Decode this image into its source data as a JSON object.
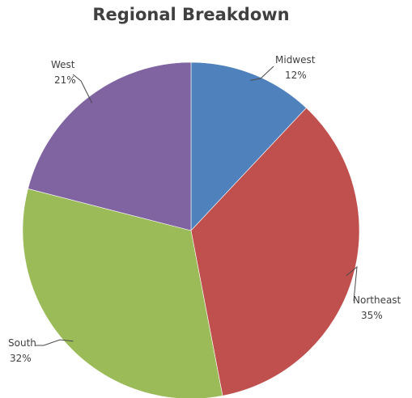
{
  "chart_data": {
    "type": "pie",
    "title": "Regional Breakdown",
    "slices": [
      {
        "label": "Midwest",
        "value": 12,
        "value_label": "12%",
        "color": "#4f81bd"
      },
      {
        "label": "Northeast",
        "value": 35,
        "value_label": "35%",
        "color": "#c0504d"
      },
      {
        "label": "South",
        "value": 32,
        "value_label": "32%",
        "color": "#9bbb59"
      },
      {
        "label": "West",
        "value": 21,
        "value_label": "21%",
        "color": "#8064a2"
      }
    ],
    "start_angle": "12 o'clock",
    "direction": "clockwise",
    "legend": "none"
  }
}
